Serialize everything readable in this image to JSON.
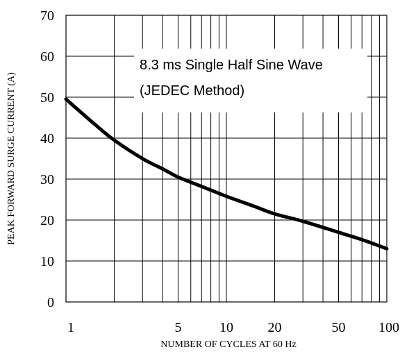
{
  "chart_data": {
    "type": "line",
    "title": "",
    "xlabel": "NUMBER OF CYCLES AT 60 Hz",
    "ylabel": "PEAK FORWARD SURGE CURRENT (A)",
    "x_scale": "log",
    "xlim": [
      1,
      100
    ],
    "ylim": [
      0,
      70
    ],
    "y_ticks": [
      "0",
      "10",
      "20",
      "30",
      "40",
      "50",
      "60",
      "70"
    ],
    "x_ticks": [
      {
        "value": 1,
        "label": "1"
      },
      {
        "value": 5,
        "label": "5"
      },
      {
        "value": 10,
        "label": "10"
      },
      {
        "value": 20,
        "label": "20"
      },
      {
        "value": 50,
        "label": "50"
      },
      {
        "value": 100,
        "label": "100"
      }
    ],
    "annotation": [
      "8.3 ms Single Half Sine Wave",
      "(JEDEC Method)"
    ],
    "grid": true,
    "series": [
      {
        "x": [
          1,
          1.5,
          2,
          3,
          4,
          5,
          7,
          10,
          15,
          20,
          30,
          50,
          70,
          100
        ],
        "y": [
          49.5,
          43.5,
          39.5,
          35,
          32.5,
          30.5,
          28.2,
          25.8,
          23.3,
          21.5,
          19.7,
          17,
          15.2,
          13
        ]
      }
    ]
  }
}
